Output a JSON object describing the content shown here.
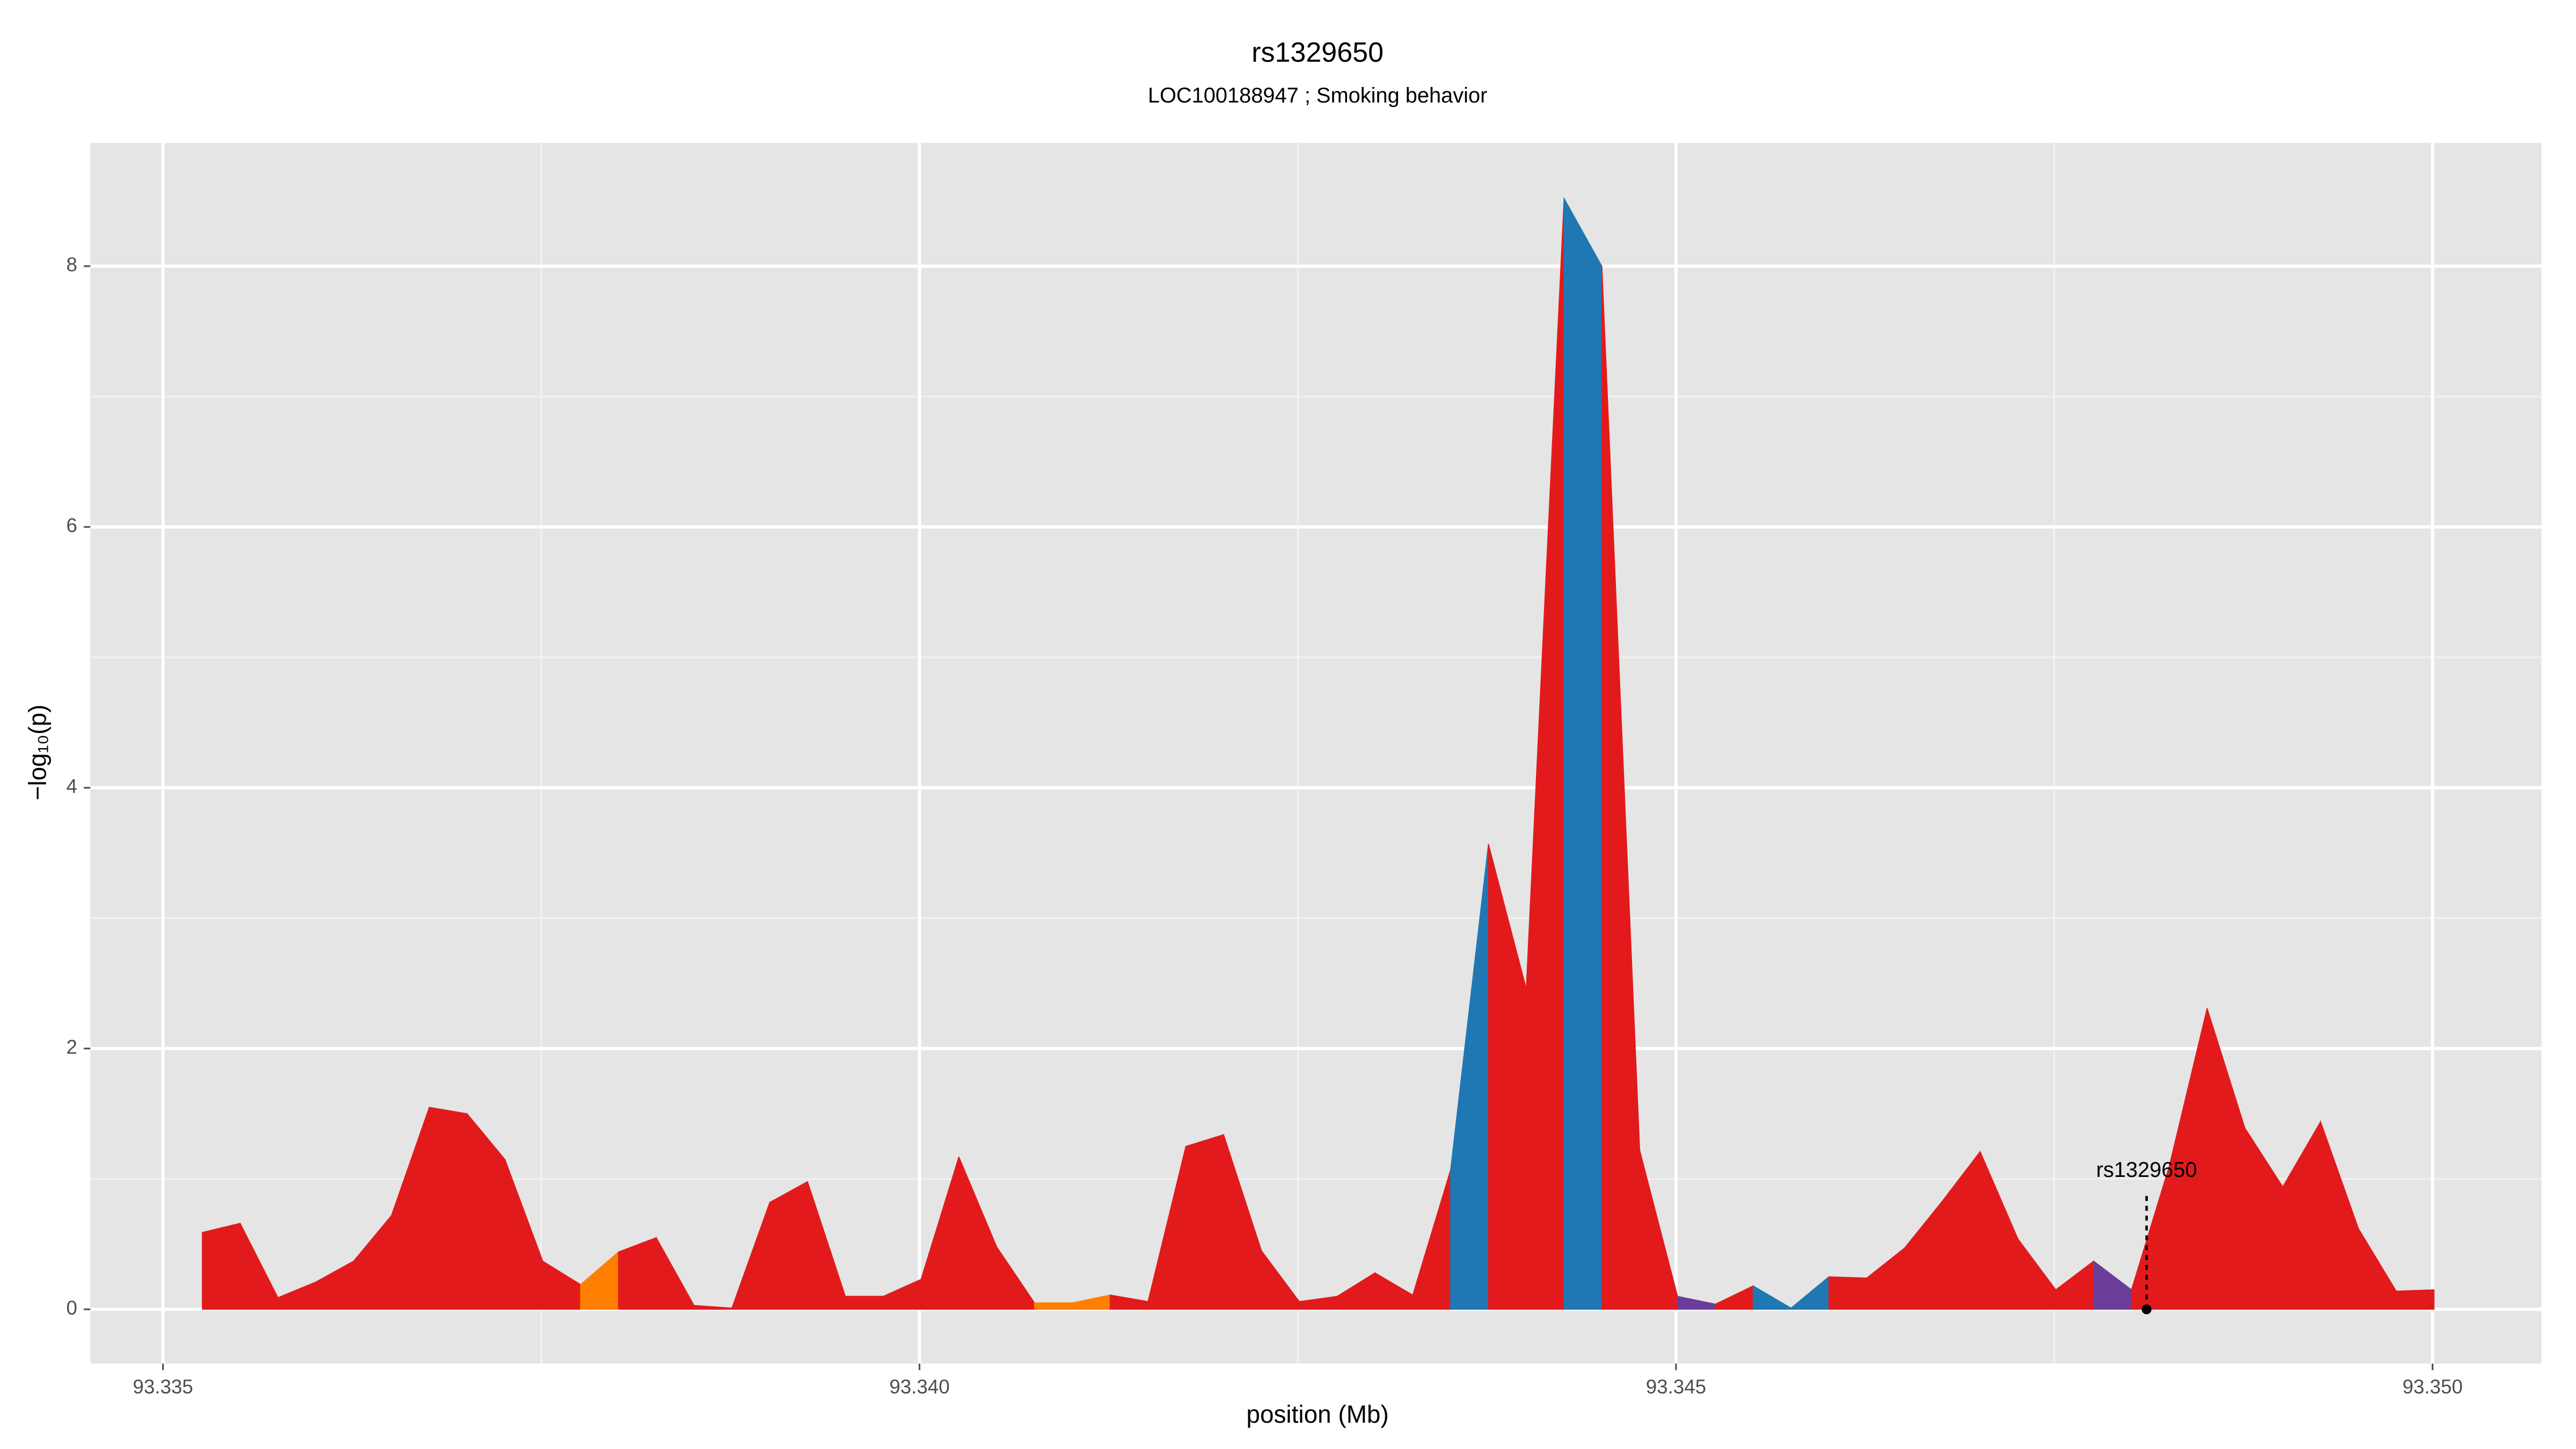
{
  "chart_data": {
    "type": "area",
    "title": "rs1329650",
    "subtitle": "LOC100188947 ; Smoking behavior",
    "xlabel": "position (Mb)",
    "ylabel": "−log₁₀(p)",
    "x": [
      93.33526,
      93.33551,
      93.33576,
      93.33601,
      93.33626,
      93.33651,
      93.33676,
      93.33701,
      93.33726,
      93.33751,
      93.33776,
      93.33801,
      93.33826,
      93.33851,
      93.33876,
      93.33901,
      93.33926,
      93.33951,
      93.33976,
      93.34001,
      93.34026,
      93.34051,
      93.34076,
      93.34101,
      93.34126,
      93.34151,
      93.34176,
      93.34201,
      93.34226,
      93.34251,
      93.34276,
      93.34301,
      93.34326,
      93.34351,
      93.34376,
      93.34401,
      93.34426,
      93.34451,
      93.34476,
      93.34501,
      93.34526,
      93.34551,
      93.34576,
      93.34601,
      93.34626,
      93.34651,
      93.34676,
      93.34701,
      93.34726,
      93.34751,
      93.34776,
      93.34801,
      93.34826,
      93.34851,
      93.34876,
      93.34901,
      93.34926,
      93.34951,
      93.34976,
      93.35001
    ],
    "values": [
      0.59,
      0.66,
      0.09,
      0.21,
      0.37,
      0.72,
      1.55,
      1.5,
      1.15,
      0.37,
      0.19,
      0.44,
      0.55,
      0.03,
      0.01,
      0.82,
      0.98,
      0.1,
      0.1,
      0.23,
      1.17,
      0.48,
      0.05,
      0.05,
      0.11,
      0.06,
      1.25,
      1.34,
      0.45,
      0.06,
      0.1,
      0.28,
      0.11,
      1.07,
      3.57,
      2.46,
      8.52,
      8.0,
      1.22,
      0.1,
      0.04,
      0.18,
      0.01,
      0.25,
      0.24,
      0.47,
      0.83,
      1.21,
      0.54,
      0.15,
      0.37,
      0.15,
      1.1,
      2.31,
      1.39,
      0.94,
      1.44,
      0.62,
      0.14,
      0.15
    ],
    "segment_colors": [
      "#e31a1c",
      "#e31a1c",
      "#e31a1c",
      "#e31a1c",
      "#e31a1c",
      "#e31a1c",
      "#e31a1c",
      "#e31a1c",
      "#e31a1c",
      "#e31a1c",
      "#ff7f00",
      "#e31a1c",
      "#e31a1c",
      "#e31a1c",
      "#e31a1c",
      "#e31a1c",
      "#e31a1c",
      "#e31a1c",
      "#e31a1c",
      "#e31a1c",
      "#e31a1c",
      "#e31a1c",
      "#ff7f00",
      "#ff7f00",
      "#e31a1c",
      "#e31a1c",
      "#e31a1c",
      "#e31a1c",
      "#e31a1c",
      "#e31a1c",
      "#e31a1c",
      "#e31a1c",
      "#e31a1c",
      "#1f78b4",
      "#e31a1c",
      "#e31a1c",
      "#1f78b4",
      "#e31a1c",
      "#e31a1c",
      "#6a3d9a",
      "#e31a1c",
      "#1f78b4",
      "#1f78b4",
      "#e31a1c",
      "#e31a1c",
      "#e31a1c",
      "#e31a1c",
      "#e31a1c",
      "#e31a1c",
      "#e31a1c",
      "#6a3d9a",
      "#e31a1c",
      "#e31a1c",
      "#e31a1c",
      "#e31a1c",
      "#e31a1c",
      "#e31a1c",
      "#e31a1c",
      "#e31a1c"
    ],
    "annotation": {
      "text": "rs1329650",
      "x": 93.34811,
      "y": 0
    },
    "xlim": [
      93.33452,
      93.35072
    ],
    "ylim": [
      -0.416,
      8.945
    ],
    "xticks": [
      93.335,
      {
        "value": 93.34,
        "label": "93.340"
      },
      93.345,
      {
        "value": 93.35,
        "label": "93.350"
      }
    ],
    "yticks": [
      0,
      2,
      4,
      6,
      8
    ],
    "grid": true,
    "minor_grid": true
  }
}
